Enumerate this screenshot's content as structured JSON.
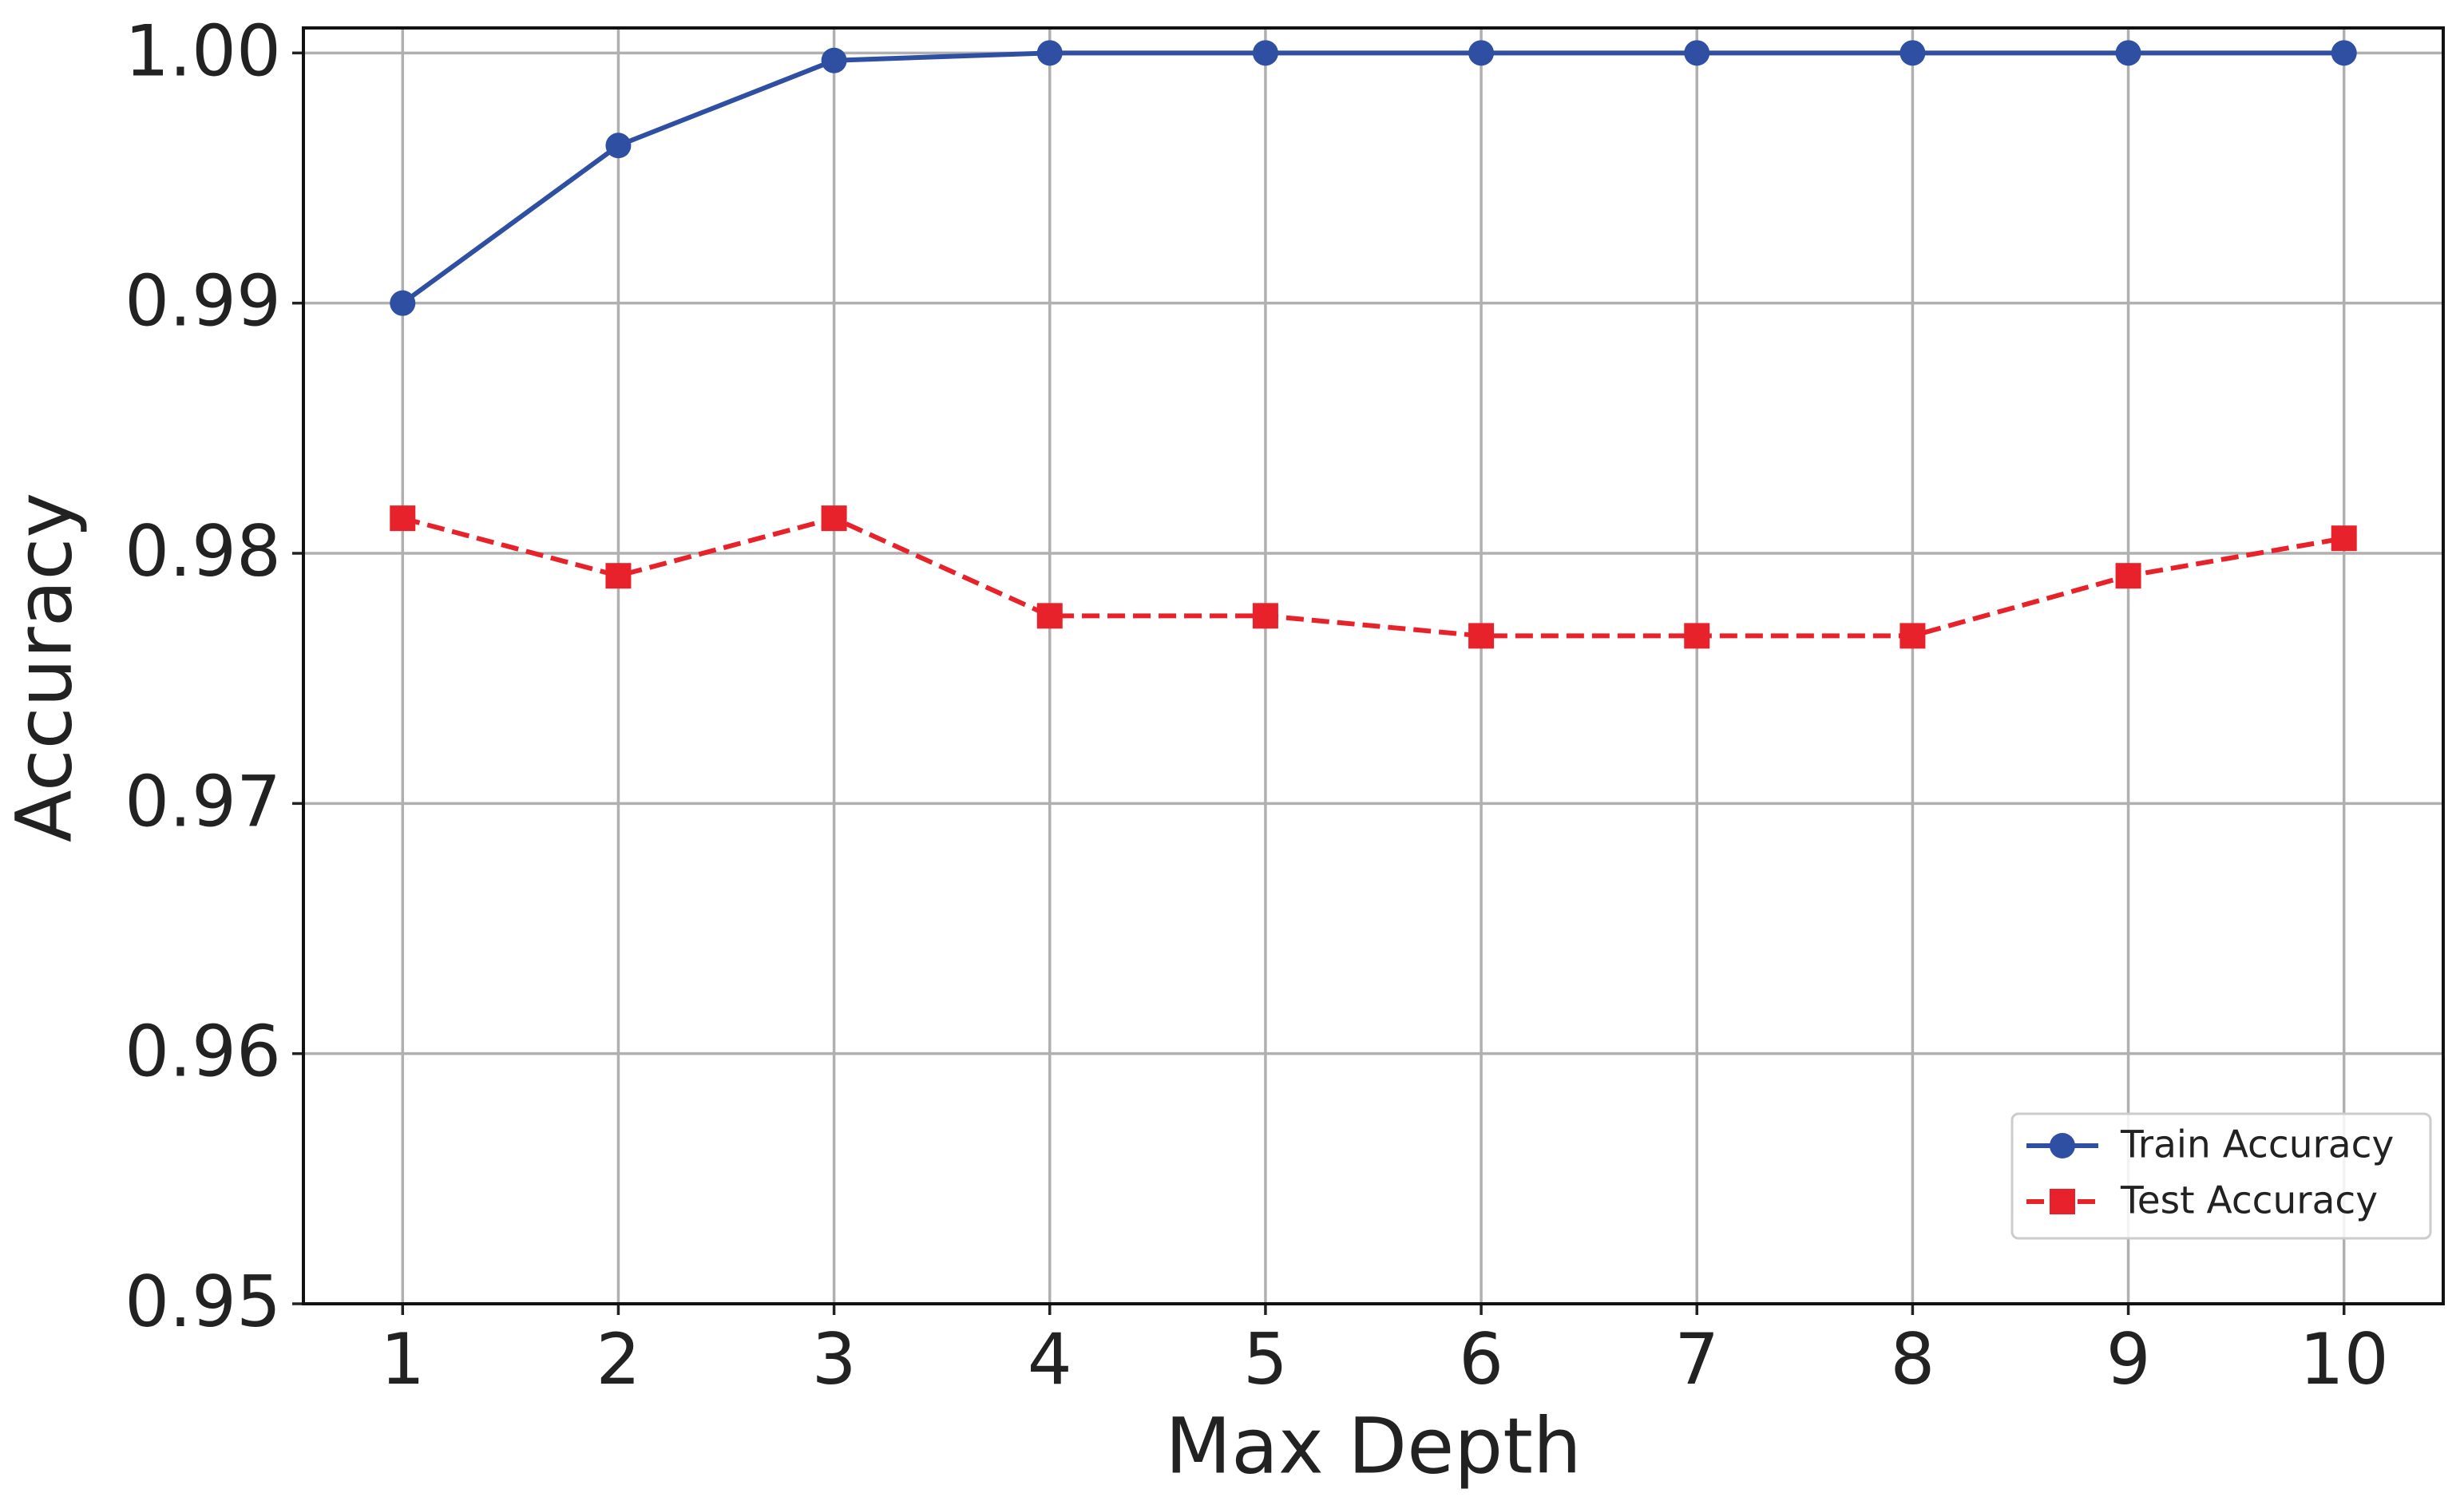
{
  "chart_data": {
    "type": "line",
    "x_label": "Max Depth",
    "y_label": "Accuracy",
    "x": [
      1,
      2,
      3,
      4,
      5,
      6,
      7,
      8,
      9,
      10
    ],
    "series": [
      {
        "name": "Train Accuracy",
        "color": "#2f4fa2",
        "marker": "circle",
        "linestyle": "solid",
        "values": [
          0.99,
          0.9963,
          0.9997,
          1.0,
          1.0,
          1.0,
          1.0,
          1.0,
          1.0,
          1.0
        ]
      },
      {
        "name": "Test Accuracy",
        "color": "#e8222b",
        "marker": "square",
        "linestyle": "dashed",
        "values": [
          0.9814,
          0.9791,
          0.9814,
          0.9775,
          0.9775,
          0.9767,
          0.9767,
          0.9767,
          0.9791,
          0.9806
        ]
      }
    ],
    "xlim": [
      0.54,
      10.46
    ],
    "xticks": [
      1,
      2,
      3,
      4,
      5,
      6,
      7,
      8,
      9,
      10
    ],
    "ylim": [
      0.95,
      1.001
    ],
    "yticks": [
      0.95,
      0.96,
      0.97,
      0.98,
      0.99,
      {
        "value": 1.0,
        "label": "1.00"
      }
    ],
    "grid": true,
    "legend": "lower right"
  }
}
